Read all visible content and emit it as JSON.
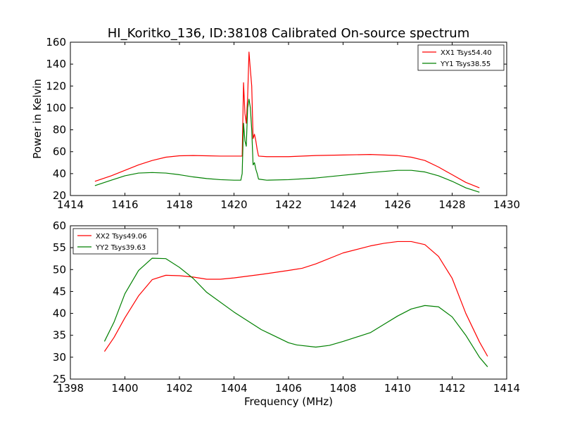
{
  "figure_title": "HI_Koritko_136, ID:38108 Calibrated On-source spectrum",
  "chart_data": [
    {
      "type": "line",
      "title": "HI_Koritko_136, ID:38108 Calibrated On-source spectrum",
      "xlabel": "",
      "ylabel": "Power in Kelvin",
      "xlim": [
        1414,
        1430
      ],
      "ylim": [
        20,
        160
      ],
      "xticks": [
        1414,
        1416,
        1418,
        1420,
        1422,
        1424,
        1426,
        1428,
        1430
      ],
      "yticks": [
        20,
        40,
        60,
        80,
        100,
        120,
        140,
        160
      ],
      "grid": false,
      "legend_position": "top-right",
      "series": [
        {
          "name": "XX1 Tsys54.40",
          "color": "#ff0000",
          "points": [
            [
              1414.9,
              33
            ],
            [
              1415.5,
              38
            ],
            [
              1416.0,
              43
            ],
            [
              1416.5,
              48
            ],
            [
              1417.0,
              52
            ],
            [
              1417.5,
              55
            ],
            [
              1418.0,
              56.3
            ],
            [
              1418.5,
              56.5
            ],
            [
              1419.0,
              56.3
            ],
            [
              1419.5,
              56
            ],
            [
              1420.0,
              56
            ],
            [
              1420.3,
              56
            ],
            [
              1420.35,
              123
            ],
            [
              1420.4,
              95
            ],
            [
              1420.45,
              86
            ],
            [
              1420.5,
              110
            ],
            [
              1420.55,
              151
            ],
            [
              1420.6,
              135
            ],
            [
              1420.65,
              120
            ],
            [
              1420.7,
              72
            ],
            [
              1420.75,
              76
            ],
            [
              1420.8,
              70
            ],
            [
              1420.85,
              62
            ],
            [
              1420.9,
              56
            ],
            [
              1421.2,
              55.5
            ],
            [
              1422.0,
              55.5
            ],
            [
              1423.0,
              56.5
            ],
            [
              1424.0,
              57
            ],
            [
              1425.0,
              57.5
            ],
            [
              1426.0,
              56.5
            ],
            [
              1426.5,
              55
            ],
            [
              1427.0,
              52
            ],
            [
              1427.5,
              46
            ],
            [
              1428.0,
              39
            ],
            [
              1428.5,
              32
            ],
            [
              1429.0,
              27
            ]
          ]
        },
        {
          "name": "YY1 Tsys38.55",
          "color": "#008000",
          "points": [
            [
              1414.9,
              29
            ],
            [
              1415.5,
              34
            ],
            [
              1416.0,
              38
            ],
            [
              1416.5,
              40.5
            ],
            [
              1417.0,
              41
            ],
            [
              1417.5,
              40.5
            ],
            [
              1418.0,
              39
            ],
            [
              1418.5,
              37
            ],
            [
              1419.0,
              35.5
            ],
            [
              1419.5,
              34.5
            ],
            [
              1420.0,
              34
            ],
            [
              1420.25,
              34
            ],
            [
              1420.3,
              40
            ],
            [
              1420.35,
              86
            ],
            [
              1420.4,
              70
            ],
            [
              1420.45,
              65
            ],
            [
              1420.5,
              100
            ],
            [
              1420.55,
              108
            ],
            [
              1420.6,
              100
            ],
            [
              1420.65,
              80
            ],
            [
              1420.7,
              48
            ],
            [
              1420.75,
              50
            ],
            [
              1420.8,
              44
            ],
            [
              1420.85,
              40
            ],
            [
              1420.9,
              35
            ],
            [
              1421.2,
              34
            ],
            [
              1422.0,
              34.5
            ],
            [
              1423.0,
              36
            ],
            [
              1424.0,
              38.5
            ],
            [
              1425.0,
              41
            ],
            [
              1426.0,
              43
            ],
            [
              1426.5,
              43
            ],
            [
              1427.0,
              41.5
            ],
            [
              1427.5,
              38
            ],
            [
              1428.0,
              33
            ],
            [
              1428.5,
              27
            ],
            [
              1429.0,
              23
            ]
          ]
        }
      ]
    },
    {
      "type": "line",
      "title": "",
      "xlabel": "Frequency (MHz)",
      "ylabel": "",
      "xlim": [
        1398,
        1414
      ],
      "ylim": [
        25,
        60
      ],
      "xticks": [
        1398,
        1400,
        1402,
        1404,
        1406,
        1408,
        1410,
        1412,
        1414
      ],
      "yticks": [
        25,
        30,
        35,
        40,
        45,
        50,
        55,
        60
      ],
      "grid": false,
      "legend_position": "top-left",
      "series": [
        {
          "name": "XX2 Tsys49.06",
          "color": "#ff0000",
          "points": [
            [
              1399.25,
              31.3
            ],
            [
              1399.6,
              34.5
            ],
            [
              1400.0,
              39
            ],
            [
              1400.5,
              44
            ],
            [
              1401.0,
              47.7
            ],
            [
              1401.5,
              48.7
            ],
            [
              1402.0,
              48.6
            ],
            [
              1402.5,
              48.3
            ],
            [
              1403.0,
              47.8
            ],
            [
              1403.5,
              47.8
            ],
            [
              1404.0,
              48.1
            ],
            [
              1405.0,
              48.9
            ],
            [
              1406.0,
              49.8
            ],
            [
              1406.5,
              50.3
            ],
            [
              1407.0,
              51.3
            ],
            [
              1408.0,
              53.8
            ],
            [
              1409.0,
              55.4
            ],
            [
              1409.5,
              56
            ],
            [
              1410.0,
              56.4
            ],
            [
              1410.5,
              56.4
            ],
            [
              1411.0,
              55.7
            ],
            [
              1411.5,
              53
            ],
            [
              1412.0,
              48
            ],
            [
              1412.5,
              40
            ],
            [
              1413.0,
              33.5
            ],
            [
              1413.3,
              30.2
            ]
          ]
        },
        {
          "name": "YY2 Tsys39.63",
          "color": "#008000",
          "points": [
            [
              1399.25,
              33.6
            ],
            [
              1399.6,
              38
            ],
            [
              1400.0,
              44.5
            ],
            [
              1400.5,
              49.8
            ],
            [
              1401.0,
              52.6
            ],
            [
              1401.5,
              52.5
            ],
            [
              1402.0,
              50.5
            ],
            [
              1402.5,
              48
            ],
            [
              1403.0,
              44.8
            ],
            [
              1404.0,
              40.3
            ],
            [
              1405.0,
              36.3
            ],
            [
              1406.0,
              33.3
            ],
            [
              1406.3,
              32.8
            ],
            [
              1407.0,
              32.3
            ],
            [
              1407.5,
              32.7
            ],
            [
              1408.0,
              33.6
            ],
            [
              1409.0,
              35.6
            ],
            [
              1409.5,
              37.5
            ],
            [
              1410.0,
              39.4
            ],
            [
              1410.5,
              41
            ],
            [
              1411.0,
              41.8
            ],
            [
              1411.5,
              41.5
            ],
            [
              1412.0,
              39.2
            ],
            [
              1412.5,
              35
            ],
            [
              1413.0,
              30
            ],
            [
              1413.3,
              27.8
            ]
          ]
        }
      ]
    }
  ]
}
